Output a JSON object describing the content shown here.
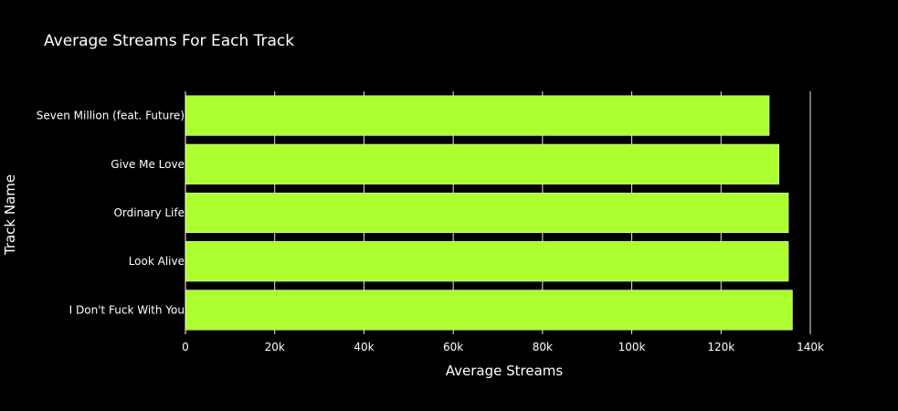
{
  "chart_data": {
    "type": "bar",
    "orientation": "horizontal",
    "title": "Average Streams For Each Track",
    "xlabel": "Average Streams",
    "ylabel": "Track Name",
    "categories": [
      "I Don't Fuck With You",
      "Look Alive",
      "Ordinary Life",
      "Give Me Love",
      "Seven Million (feat. Future)"
    ],
    "values": [
      136000,
      135100,
      135100,
      133000,
      130800
    ],
    "xlim": [
      0,
      140000
    ],
    "xticks": [
      0,
      20000,
      40000,
      60000,
      80000,
      100000,
      120000,
      140000
    ],
    "xtick_labels": [
      "0",
      "20k",
      "40k",
      "60k",
      "80k",
      "100k",
      "120k",
      "140k"
    ],
    "grid": true,
    "legend": "none"
  },
  "colors": {
    "background": "#000000",
    "bar": "#adff2f",
    "bar_outline": "#ffffff",
    "text": "#ffffff",
    "grid": "#ffffff"
  }
}
